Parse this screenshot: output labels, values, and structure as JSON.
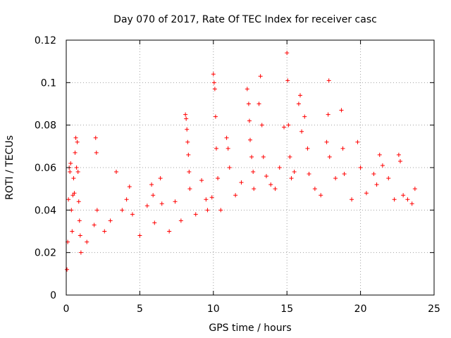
{
  "chart_data": {
    "type": "scatter",
    "title": "Day 070 of 2017, Rate Of TEC Index for receiver casc",
    "xlabel": "GPS time / hours",
    "ylabel": "ROTI / TECUs",
    "xlim": [
      0,
      25
    ],
    "ylim": [
      0,
      0.12
    ],
    "xticks": [
      "0",
      "5",
      "10",
      "15",
      "20",
      "25"
    ],
    "yticks": [
      "0",
      "0.02",
      "0.04",
      "0.06",
      "0.08",
      "0.1",
      "0.12"
    ],
    "grid": true,
    "marker": "+",
    "color": "#ff0000",
    "series": [
      {
        "points": [
          [
            0.05,
            0.012
          ],
          [
            0.1,
            0.025
          ],
          [
            0.15,
            0.045
          ],
          [
            0.2,
            0.06
          ],
          [
            0.25,
            0.058
          ],
          [
            0.3,
            0.062
          ],
          [
            0.35,
            0.04
          ],
          [
            0.4,
            0.03
          ],
          [
            0.45,
            0.047
          ],
          [
            0.5,
            0.055
          ],
          [
            0.55,
            0.048
          ],
          [
            0.6,
            0.067
          ],
          [
            0.65,
            0.074
          ],
          [
            0.7,
            0.06
          ],
          [
            0.75,
            0.072
          ],
          [
            0.8,
            0.058
          ],
          [
            0.85,
            0.044
          ],
          [
            0.9,
            0.035
          ],
          [
            0.95,
            0.028
          ],
          [
            1.0,
            0.02
          ],
          [
            1.4,
            0.025
          ],
          [
            1.9,
            0.033
          ],
          [
            2.0,
            0.074
          ],
          [
            2.05,
            0.067
          ],
          [
            2.1,
            0.04
          ],
          [
            2.6,
            0.03
          ],
          [
            3.0,
            0.035
          ],
          [
            3.4,
            0.058
          ],
          [
            3.8,
            0.04
          ],
          [
            4.1,
            0.045
          ],
          [
            4.3,
            0.051
          ],
          [
            4.5,
            0.038
          ],
          [
            5.0,
            0.028
          ],
          [
            5.5,
            0.042
          ],
          [
            5.8,
            0.052
          ],
          [
            5.9,
            0.047
          ],
          [
            6.0,
            0.034
          ],
          [
            6.4,
            0.055
          ],
          [
            6.5,
            0.043
          ],
          [
            7.0,
            0.03
          ],
          [
            7.4,
            0.044
          ],
          [
            7.8,
            0.035
          ],
          [
            8.1,
            0.085
          ],
          [
            8.15,
            0.083
          ],
          [
            8.2,
            0.078
          ],
          [
            8.25,
            0.072
          ],
          [
            8.3,
            0.066
          ],
          [
            8.35,
            0.058
          ],
          [
            8.4,
            0.05
          ],
          [
            8.8,
            0.038
          ],
          [
            9.2,
            0.054
          ],
          [
            9.5,
            0.045
          ],
          [
            9.6,
            0.04
          ],
          [
            9.9,
            0.046
          ],
          [
            10.0,
            0.104
          ],
          [
            10.05,
            0.1
          ],
          [
            10.1,
            0.097
          ],
          [
            10.15,
            0.084
          ],
          [
            10.2,
            0.069
          ],
          [
            10.3,
            0.055
          ],
          [
            10.5,
            0.04
          ],
          [
            10.9,
            0.074
          ],
          [
            11.0,
            0.069
          ],
          [
            11.1,
            0.06
          ],
          [
            11.5,
            0.047
          ],
          [
            11.9,
            0.053
          ],
          [
            12.3,
            0.097
          ],
          [
            12.4,
            0.09
          ],
          [
            12.45,
            0.082
          ],
          [
            12.5,
            0.073
          ],
          [
            12.6,
            0.065
          ],
          [
            12.7,
            0.058
          ],
          [
            12.75,
            0.05
          ],
          [
            13.1,
            0.09
          ],
          [
            13.2,
            0.103
          ],
          [
            13.3,
            0.08
          ],
          [
            13.4,
            0.065
          ],
          [
            13.6,
            0.056
          ],
          [
            13.9,
            0.052
          ],
          [
            14.2,
            0.05
          ],
          [
            14.5,
            0.06
          ],
          [
            14.8,
            0.079
          ],
          [
            15.0,
            0.114
          ],
          [
            15.05,
            0.101
          ],
          [
            15.1,
            0.08
          ],
          [
            15.2,
            0.065
          ],
          [
            15.3,
            0.055
          ],
          [
            15.5,
            0.058
          ],
          [
            15.8,
            0.09
          ],
          [
            15.9,
            0.094
          ],
          [
            16.0,
            0.077
          ],
          [
            16.2,
            0.084
          ],
          [
            16.4,
            0.069
          ],
          [
            16.5,
            0.057
          ],
          [
            16.9,
            0.05
          ],
          [
            17.3,
            0.047
          ],
          [
            17.7,
            0.072
          ],
          [
            17.8,
            0.085
          ],
          [
            17.85,
            0.101
          ],
          [
            17.9,
            0.065
          ],
          [
            18.3,
            0.055
          ],
          [
            18.7,
            0.087
          ],
          [
            18.8,
            0.069
          ],
          [
            18.9,
            0.057
          ],
          [
            19.4,
            0.045
          ],
          [
            19.8,
            0.072
          ],
          [
            20.0,
            0.06
          ],
          [
            20.4,
            0.048
          ],
          [
            20.9,
            0.057
          ],
          [
            21.1,
            0.052
          ],
          [
            21.3,
            0.066
          ],
          [
            21.5,
            0.061
          ],
          [
            21.9,
            0.055
          ],
          [
            22.3,
            0.045
          ],
          [
            22.6,
            0.066
          ],
          [
            22.7,
            0.063
          ],
          [
            22.9,
            0.047
          ],
          [
            23.2,
            0.045
          ],
          [
            23.5,
            0.043
          ],
          [
            23.7,
            0.05
          ]
        ]
      }
    ]
  }
}
